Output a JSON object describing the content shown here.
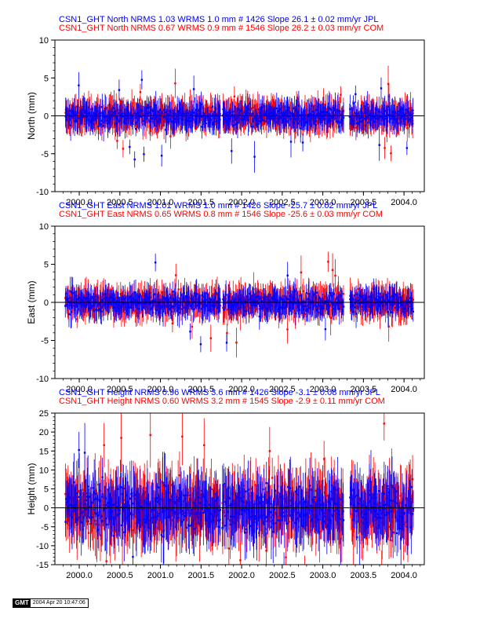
{
  "chart_data": [
    {
      "type": "scatter",
      "panel": "north",
      "ylabel": "North (mm)",
      "ylim": [
        -10,
        10
      ],
      "yticks": [
        -10,
        -5,
        0,
        5,
        10
      ],
      "xlim": [
        1999.7,
        2004.25
      ],
      "xticks": [
        2000.0,
        2000.5,
        2001.0,
        2001.5,
        2002.0,
        2002.5,
        2003.0,
        2003.5,
        2004.0
      ],
      "xtick_labels": [
        "2000.0",
        "2000.5",
        "2001.0",
        "2001.5",
        "2002.0",
        "2002.5",
        "2003.0",
        "2003.5",
        "2004.0"
      ],
      "series": [
        {
          "label": "CSN1_GHT North NRMS 1.03 WRMS  1.0 mm # 1426 Slope   26.1 ±  0.02 mm/yr JPL",
          "color": "#0000ff",
          "nrms": 1.03,
          "wrms_mm": 1.0,
          "n": 1426,
          "slope": 26.1,
          "slope_err": 0.02
        },
        {
          "label": "CSN1_GHT North NRMS 0.67 WRMS  0.9 mm # 1546 Slope   26.2 ±  0.03 mm/yr COM",
          "color": "#ff0000",
          "nrms": 0.67,
          "wrms_mm": 0.9,
          "n": 1546,
          "slope": 26.2,
          "slope_err": 0.03
        }
      ]
    },
    {
      "type": "scatter",
      "panel": "east",
      "ylabel": "East (mm)",
      "ylim": [
        -10,
        10
      ],
      "yticks": [
        -10,
        -5,
        0,
        5,
        10
      ],
      "xlim": [
        1999.7,
        2004.25
      ],
      "xticks": [
        2000.0,
        2000.5,
        2001.0,
        2001.5,
        2002.0,
        2002.5,
        2003.0,
        2003.5,
        2004.0
      ],
      "xtick_labels": [
        "2000.0",
        "2000.5",
        "2001.0",
        "2001.5",
        "2002.0",
        "2002.5",
        "2003.0",
        "2003.5",
        "2004.0"
      ],
      "series": [
        {
          "label": "CSN1_GHT East NRMS 1.01 WRMS  1.0 mm # 1426 Slope  -25.7 ±  0.02 mm/yr JPL",
          "color": "#0000ff",
          "nrms": 1.01,
          "wrms_mm": 1.0,
          "n": 1426,
          "slope": -25.7,
          "slope_err": 0.02
        },
        {
          "label": "CSN1_GHT East NRMS 0.65 WRMS  0.8 mm # 1546 Slope  -25.6 ±  0.03 mm/yr COM",
          "color": "#ff0000",
          "nrms": 0.65,
          "wrms_mm": 0.8,
          "n": 1546,
          "slope": -25.6,
          "slope_err": 0.03
        }
      ]
    },
    {
      "type": "scatter",
      "panel": "height",
      "ylabel": "Height (mm)",
      "ylim": [
        -15,
        25
      ],
      "yticks": [
        -15,
        -10,
        -5,
        0,
        5,
        10,
        15,
        20,
        25
      ],
      "xlim": [
        1999.7,
        2004.25
      ],
      "xticks": [
        2000.0,
        2000.5,
        2001.0,
        2001.5,
        2002.0,
        2002.5,
        2003.0,
        2003.5,
        2004.0
      ],
      "xtick_labels": [
        "2000.0",
        "2000.5",
        "2001.0",
        "2001.5",
        "2002.0",
        "2002.5",
        "2003.0",
        "2003.5",
        "2004.0"
      ],
      "series": [
        {
          "label": "CSN1_GHT Height NRMS 0.96 WRMS  3.6 mm # 1426 Slope   -3.1 ±  0.08 mm/yr JPL",
          "color": "#0000ff",
          "nrms": 0.96,
          "wrms_mm": 3.6,
          "n": 1426,
          "slope": -3.1,
          "slope_err": 0.08
        },
        {
          "label": "CSN1_GHT Height NRMS 0.60 WRMS  3.2 mm # 1545 Slope   -2.9 ±  0.11 mm/yr COM",
          "color": "#ff0000",
          "nrms": 0.6,
          "wrms_mm": 3.2,
          "n": 1545,
          "slope": -2.9,
          "slope_err": 0.11
        }
      ]
    }
  ],
  "footer": {
    "logo": "GMT",
    "timestamp": "2004 Apr 20 10:47:06"
  }
}
